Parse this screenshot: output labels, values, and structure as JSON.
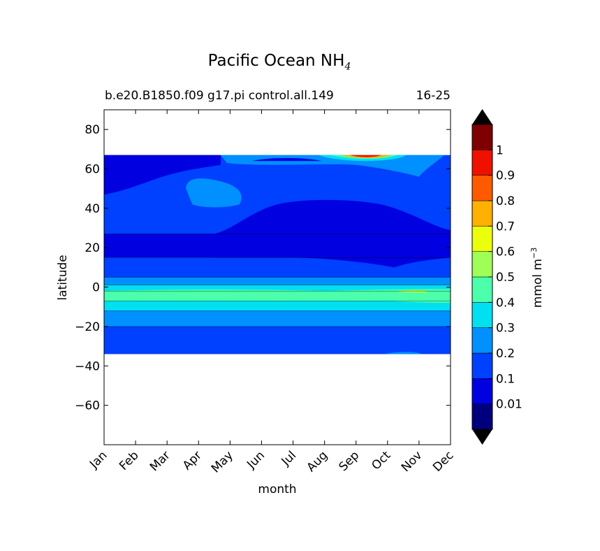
{
  "chart_data": {
    "type": "heatmap",
    "title": "Pacific Ocean NH",
    "title_subscript": "4",
    "subtitle_left": "b.e20.B1850.f09 g17.pi control.all.149",
    "subtitle_right": "16-25",
    "xlabel": "month",
    "ylabel": "latitude",
    "x_categories": [
      "Jan",
      "Feb",
      "Mar",
      "Apr",
      "May",
      "Jun",
      "Jul",
      "Aug",
      "Sep",
      "Oct",
      "Nov",
      "Dec"
    ],
    "xlim": [
      0,
      11
    ],
    "ylim": [
      -80,
      90
    ],
    "yticks": [
      "80",
      "60",
      "40",
      "20",
      "0",
      "−20",
      "−40",
      "−60"
    ],
    "ytick_values": [
      80,
      60,
      40,
      20,
      0,
      -20,
      -40,
      -60
    ],
    "data_lat_range": [
      -34,
      67
    ],
    "colorbar": {
      "label": "mmol m",
      "label_superscript": "−3",
      "levels": [
        0,
        0.01,
        0.1,
        0.2,
        0.3,
        0.4,
        0.5,
        0.6,
        0.7,
        0.8,
        0.9,
        1,
        1.1
      ],
      "tick_labels": [
        "0.01",
        "0.1",
        "0.2",
        "0.3",
        "0.4",
        "0.5",
        "0.6",
        "0.7",
        "0.8",
        "0.9",
        "1"
      ],
      "tick_values": [
        0.01,
        0.1,
        0.2,
        0.3,
        0.4,
        0.5,
        0.6,
        0.7,
        0.8,
        0.9,
        1
      ],
      "colors": [
        "#00007f",
        "#0000e1",
        "#0040ff",
        "#0090ff",
        "#00e0f0",
        "#4cffaa",
        "#a0ff56",
        "#ecff0a",
        "#ffb000",
        "#ff5a00",
        "#f01000",
        "#7f0000"
      ],
      "extend": "both",
      "over_color": "#000000",
      "under_color": "#000000"
    },
    "bands": [
      {
        "lat_range": [
          27,
          67
        ],
        "value": 0.15,
        "note": "northern subtropical/subpolar"
      },
      {
        "lat_range": [
          15,
          27
        ],
        "value": 0.05
      },
      {
        "lat_range": [
          5,
          15
        ],
        "value": 0.15
      },
      {
        "lat_range": [
          1,
          5
        ],
        "value": 0.25
      },
      {
        "lat_range": [
          -2,
          1
        ],
        "value": 0.35
      },
      {
        "lat_range": [
          -7,
          -2
        ],
        "value": 0.45
      },
      {
        "lat_range": [
          -12,
          -7
        ],
        "value": 0.35
      },
      {
        "lat_range": [
          -20,
          -12
        ],
        "value": 0.25
      },
      {
        "lat_range": [
          -34,
          -20
        ],
        "value": 0.15
      }
    ],
    "features": [
      {
        "description": "high NH4 max near Sep-Oct at ~66N",
        "month": 8.5,
        "lat": 66,
        "value": 0.95
      },
      {
        "description": "low region Jun-Nov 20-44N",
        "value": 0.05
      },
      {
        "description": "elevated patch Apr-May 40-55N",
        "value": 0.25
      }
    ]
  }
}
